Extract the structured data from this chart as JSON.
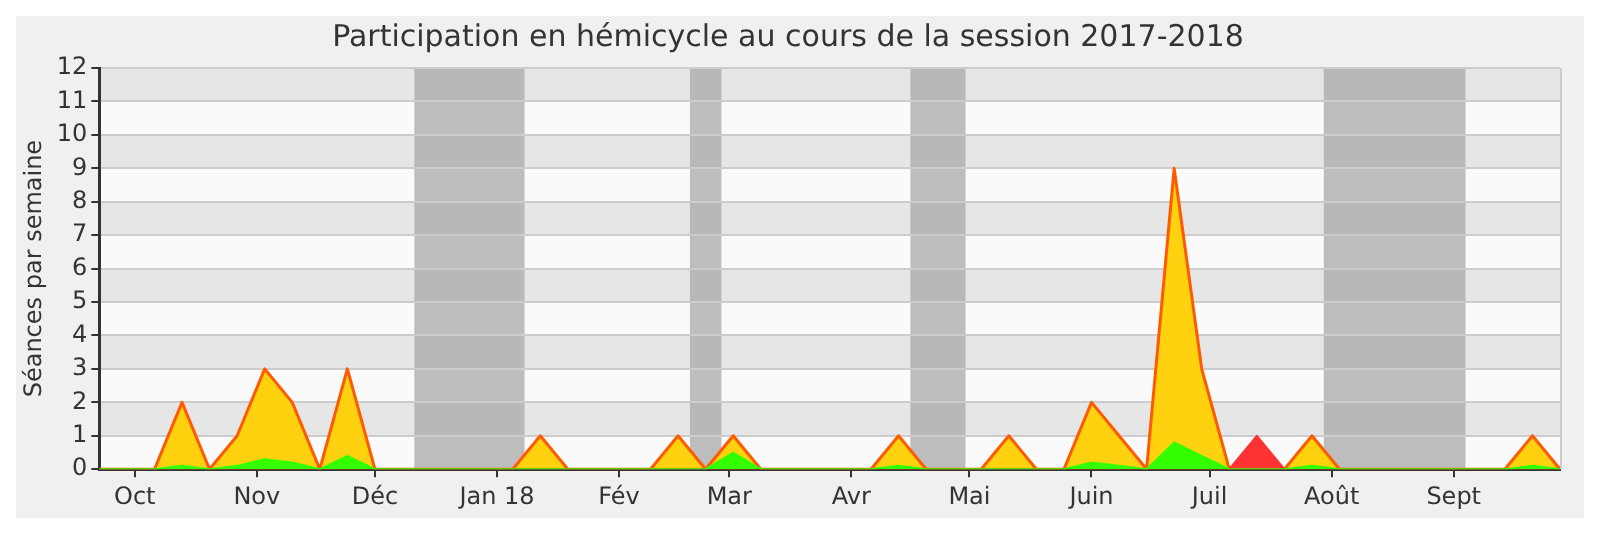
{
  "chart_data": {
    "type": "area",
    "title": "Participation en hémicycle au cours de la session 2017-2018",
    "ylabel": "Séances par semaine",
    "x": [
      "2017-09-22",
      "2017-09-29",
      "2017-10-06",
      "2017-10-13",
      "2017-10-20",
      "2017-10-27",
      "2017-11-03",
      "2017-11-10",
      "2017-11-17",
      "2017-11-24",
      "2017-12-01",
      "2017-12-08",
      "2017-12-15",
      "2017-12-22",
      "2017-12-29",
      "2018-01-05",
      "2018-01-12",
      "2018-01-19",
      "2018-01-26",
      "2018-02-02",
      "2018-02-09",
      "2018-02-16",
      "2018-02-23",
      "2018-03-02",
      "2018-03-09",
      "2018-03-16",
      "2018-03-23",
      "2018-03-30",
      "2018-04-06",
      "2018-04-13",
      "2018-04-20",
      "2018-04-27",
      "2018-05-04",
      "2018-05-11",
      "2018-05-18",
      "2018-05-25",
      "2018-06-01",
      "2018-06-08",
      "2018-06-15",
      "2018-06-22",
      "2018-06-29",
      "2018-07-06",
      "2018-07-13",
      "2018-07-20",
      "2018-07-27",
      "2018-08-03",
      "2018-08-10",
      "2018-08-17",
      "2018-08-24",
      "2018-08-31",
      "2018-09-07",
      "2018-09-14",
      "2018-09-21",
      "2018-09-28"
    ],
    "series": [
      {
        "color": "#ffd10f",
        "values": [
          0,
          0,
          0,
          2,
          0,
          1,
          3,
          2,
          0,
          3,
          0,
          0,
          0,
          0,
          0,
          0,
          1,
          0,
          0,
          0,
          0,
          1,
          0,
          1,
          0,
          0,
          0,
          0,
          0,
          1,
          0,
          0,
          0,
          1,
          0,
          0,
          2,
          1,
          0,
          9,
          3,
          0,
          0,
          0,
          1,
          0,
          0,
          0,
          0,
          0,
          0,
          0,
          1,
          0
        ]
      },
      {
        "color": "#ff3333",
        "values": [
          0,
          0,
          0,
          0,
          0,
          0,
          0,
          0,
          0,
          0,
          0,
          0,
          0,
          0,
          0,
          0,
          0,
          0,
          0,
          0,
          0,
          0,
          0,
          0,
          0,
          0,
          0,
          0,
          0,
          0,
          0,
          0,
          0,
          0,
          0,
          0,
          0,
          0,
          0,
          0,
          0,
          0,
          1,
          0,
          0,
          0,
          0,
          0,
          0,
          0,
          0,
          0,
          0,
          0
        ]
      },
      {
        "color": "#33ff00",
        "values": [
          0,
          0,
          0,
          0.1,
          0,
          0.1,
          0.3,
          0.2,
          0,
          0.4,
          0,
          0,
          0,
          0,
          0,
          0,
          0,
          0,
          0,
          0,
          0,
          0,
          0,
          0.5,
          0,
          0,
          0,
          0,
          0,
          0.1,
          0,
          0,
          0,
          0,
          0,
          0,
          0.2,
          0.1,
          0,
          0.8,
          0.4,
          0,
          0,
          0,
          0.1,
          0,
          0,
          0,
          0,
          0,
          0,
          0,
          0.1,
          0
        ]
      }
    ],
    "xlim": [
      "2017-09-22",
      "2018-09-28"
    ],
    "xticks": [
      {
        "value": "2017-10-01",
        "label": "Oct"
      },
      {
        "value": "2017-11-01",
        "label": "Nov"
      },
      {
        "value": "2017-12-01",
        "label": "Déc"
      },
      {
        "value": "2018-01-01",
        "label": "Jan 18"
      },
      {
        "value": "2018-02-01",
        "label": "Fév"
      },
      {
        "value": "2018-03-01",
        "label": "Mar"
      },
      {
        "value": "2018-04-01",
        "label": "Avr"
      },
      {
        "value": "2018-05-01",
        "label": "Mai"
      },
      {
        "value": "2018-06-01",
        "label": "Juin"
      },
      {
        "value": "2018-07-01",
        "label": "Juil"
      },
      {
        "value": "2018-08-01",
        "label": "Août"
      },
      {
        "value": "2018-09-01",
        "label": "Sept"
      }
    ],
    "ylim": [
      0,
      12
    ],
    "yticks": [
      0,
      1,
      2,
      3,
      4,
      5,
      6,
      7,
      8,
      9,
      10,
      11,
      12
    ],
    "bands": [
      {
        "axis": "x",
        "from": "2017-12-11",
        "to": "2018-01-08",
        "color": "#a8a8a8"
      },
      {
        "axis": "x",
        "from": "2018-02-19",
        "to": "2018-02-27",
        "color": "#a8a8a8"
      },
      {
        "axis": "x",
        "from": "2018-04-16",
        "to": "2018-04-30",
        "color": "#a8a8a8"
      },
      {
        "axis": "x",
        "from": "2018-07-30",
        "to": "2018-09-04",
        "color": "#a8a8a8"
      }
    ],
    "grid": "y",
    "legend": false,
    "line_style": "solid",
    "marker": "none"
  }
}
